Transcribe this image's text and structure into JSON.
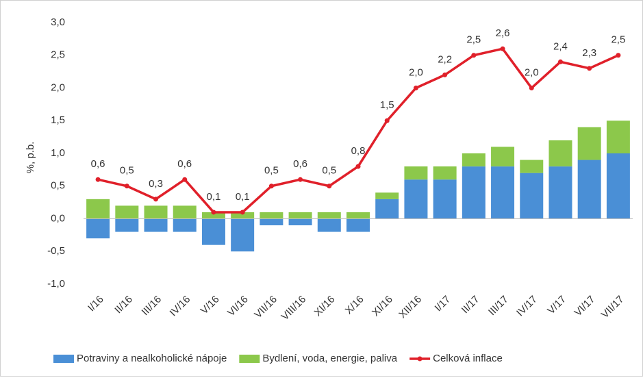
{
  "chart_data": {
    "type": "bar",
    "stacked": true,
    "y_label": "%, p.b.",
    "categories": [
      "I/16",
      "II/16",
      "III/16",
      "IV/16",
      "V/16",
      "VI/16",
      "VII/16",
      "VIII/16",
      "XI/16",
      "X/16",
      "XI/16",
      "XII/16",
      "I/17",
      "II/17",
      "III/17",
      "IV/17",
      "V/17",
      "VI/17",
      "VII/17"
    ],
    "series": [
      {
        "name": "Potraviny a nealkoholické nápoje",
        "type": "bar",
        "color": "#4a8fd6",
        "values": [
          -0.3,
          -0.2,
          -0.2,
          -0.2,
          -0.4,
          -0.5,
          -0.1,
          -0.1,
          -0.2,
          -0.2,
          0.3,
          0.6,
          0.6,
          0.8,
          0.8,
          0.7,
          0.8,
          0.9,
          1.0
        ]
      },
      {
        "name": "Bydlení, voda, energie, paliva",
        "type": "bar",
        "color": "#8cc84b",
        "values": [
          0.3,
          0.2,
          0.2,
          0.2,
          0.1,
          0.1,
          0.1,
          0.1,
          0.1,
          0.1,
          0.1,
          0.2,
          0.2,
          0.2,
          0.3,
          0.2,
          0.4,
          0.5,
          0.5
        ]
      },
      {
        "name": "Celková inflace",
        "type": "line",
        "color": "#e0202a",
        "values": [
          0.6,
          0.5,
          0.3,
          0.6,
          0.1,
          0.1,
          0.5,
          0.6,
          0.5,
          0.8,
          1.5,
          2.0,
          2.2,
          2.5,
          2.6,
          2.0,
          2.4,
          2.3,
          2.5
        ],
        "value_labels": [
          "0,6",
          "0,5",
          "0,3",
          "0,6",
          "0,1",
          "0,1",
          "0,5",
          "0,6",
          "0,5",
          "0,8",
          "1,5",
          "2,0",
          "2,2",
          "2,5",
          "2,6",
          "2,0",
          "2,4",
          "2,3",
          "2,5"
        ]
      }
    ],
    "ylim": [
      -1.0,
      3.0
    ],
    "yticks": [
      {
        "value": -1.0,
        "label": "-1,0"
      },
      {
        "value": -0.5,
        "label": "-0,5"
      },
      {
        "value": 0,
        "label": "0,0"
      },
      {
        "value": 0.5,
        "label": "0,5"
      },
      {
        "value": 1.0,
        "label": "1,0"
      },
      {
        "value": 1.5,
        "label": "1,5"
      },
      {
        "value": 2.0,
        "label": "2,0"
      },
      {
        "value": 2.5,
        "label": "2,5"
      },
      {
        "value": 3.0,
        "label": "3,0"
      }
    ],
    "grid": false,
    "legend": "bottom"
  }
}
